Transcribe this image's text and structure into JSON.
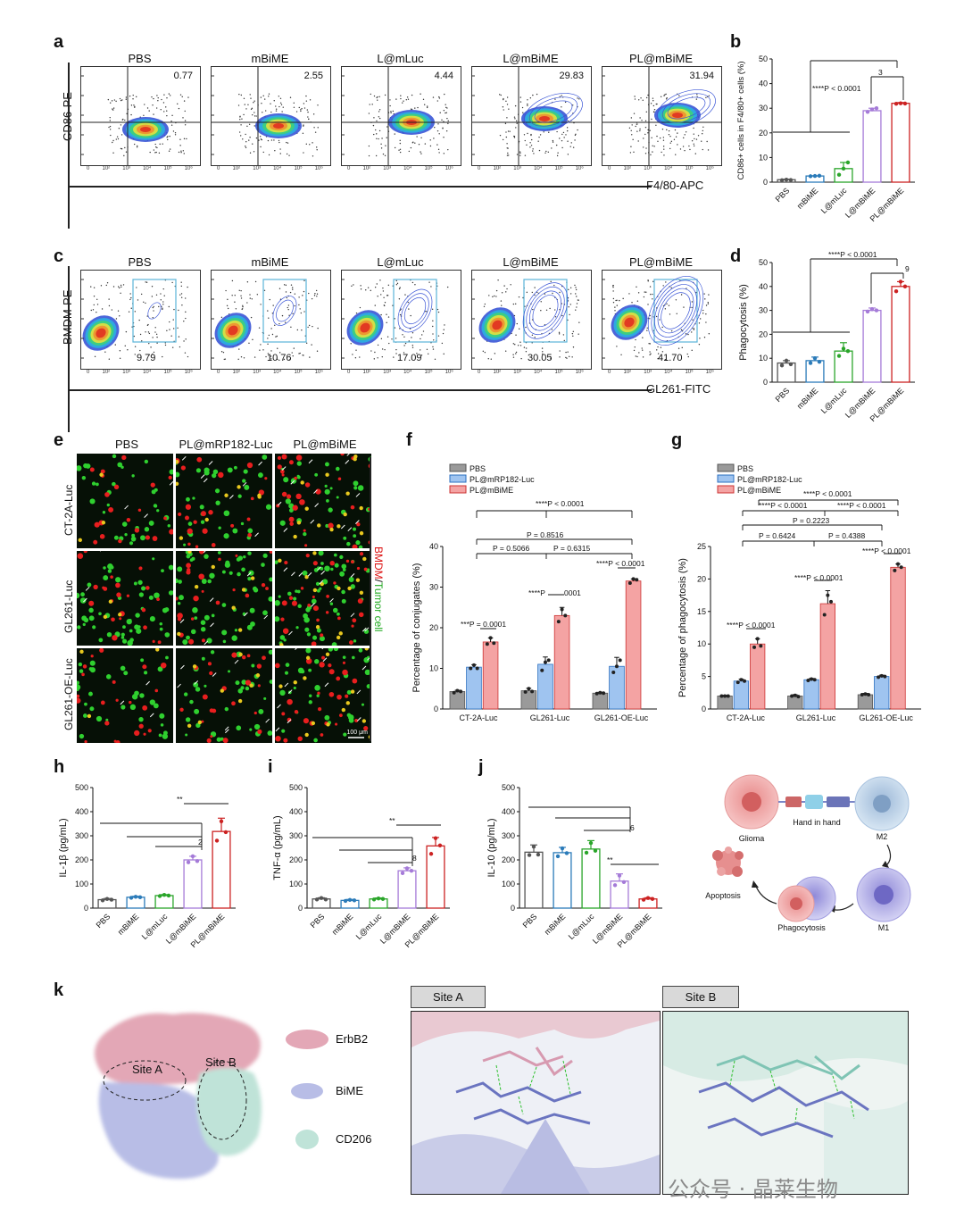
{
  "panels": {
    "a": {
      "letter": "a",
      "ylabel": "CD86-PE",
      "xlabel": "F4/80-APC",
      "plots": [
        {
          "title": "PBS",
          "value": "0.77"
        },
        {
          "title": "mBiME",
          "value": "2.55"
        },
        {
          "title": "L@mLuc",
          "value": "4.44"
        },
        {
          "title": "L@mBiME",
          "value": "29.83"
        },
        {
          "title": "PL@mBiME",
          "value": "31.94"
        }
      ]
    },
    "c": {
      "letter": "c",
      "ylabel": "BMDM-PE",
      "xlabel": "GL261-FITC",
      "plots": [
        {
          "title": "PBS",
          "value": "9.79"
        },
        {
          "title": "mBiME",
          "value": "10.76"
        },
        {
          "title": "L@mLuc",
          "value": "17.09"
        },
        {
          "title": "L@mBiME",
          "value": "30.05"
        },
        {
          "title": "PL@mBiME",
          "value": "41.70"
        }
      ]
    },
    "e": {
      "letter": "e",
      "columns": [
        "PBS",
        "PL@mRP182-Luc",
        "PL@mBiME"
      ],
      "rows": [
        "CT-2A-Luc",
        "GL261-Luc",
        "GL261-OE-Luc"
      ],
      "side_label_bmdm": "BMDM",
      "side_label_sep": "/",
      "side_label_tumor": "Tumor cell",
      "scale": "100 μm"
    },
    "h_label": "h",
    "i_label": "i",
    "j_label": "j",
    "k": {
      "letter": "k",
      "site_a": "Site A",
      "site_b": "Site B",
      "legend": [
        "ErbB2",
        "BiME",
        "CD206"
      ],
      "schematic": {
        "glioma": "Glioma",
        "hand": "Hand in hand",
        "m2": "M2",
        "m1": "M1",
        "apoptosis": "Apoptosis",
        "phagocytosis": "Phagocytosis"
      }
    }
  },
  "watermark": "公众号 · 晶莱生物",
  "colors": {
    "PBS": "#555555",
    "mBiME": "#2b7bb9",
    "L@mLuc": "#2aa52a",
    "L@mBiME": "#a57bd8",
    "PL@mBiME": "#cc2222",
    "gray_fill": "#9a9a9a",
    "blue_fill": "#9fc4f0",
    "red_fill": "#f4a3a3"
  },
  "chart_data": [
    {
      "id": "b",
      "type": "bar",
      "categories": [
        "PBS",
        "mBiME",
        "L@mLuc",
        "L@mBiME",
        "PL@mBiME"
      ],
      "values": [
        1,
        2.5,
        5.5,
        29,
        32
      ],
      "points": [
        [
          0.8,
          1,
          0.9
        ],
        [
          2.4,
          2.5,
          2.6
        ],
        [
          3,
          5.5,
          8
        ],
        [
          28.5,
          29.5,
          30
        ],
        [
          31.8,
          32,
          31.9
        ]
      ],
      "errors": [
        0.2,
        0.1,
        2.5,
        1,
        0.3
      ],
      "ylabel": "CD86+ cells in F4/80+ cells (%)",
      "ylim": [
        0,
        50
      ],
      "yticks": [
        0,
        10,
        20,
        30,
        40,
        50
      ],
      "annotations": [
        "****P < 0.0001",
        "3"
      ]
    },
    {
      "id": "d",
      "type": "bar",
      "categories": [
        "PBS",
        "mBiME",
        "L@mLuc",
        "L@mBiME",
        "PL@mBiME"
      ],
      "values": [
        8,
        9,
        13,
        30,
        40
      ],
      "points": [
        [
          7,
          9,
          7.5
        ],
        [
          8,
          10,
          8.5
        ],
        [
          11,
          14,
          13
        ],
        [
          29.5,
          30.5,
          30
        ],
        [
          38,
          42,
          40
        ]
      ],
      "errors": [
        1,
        1.5,
        3.5,
        1,
        2
      ],
      "ylabel": "Phagocytosis (%)",
      "ylim": [
        0,
        50
      ],
      "yticks": [
        0,
        10,
        20,
        30,
        40,
        50
      ],
      "annotations": [
        "****P < 0.0001",
        "9"
      ]
    },
    {
      "id": "f",
      "type": "bar",
      "categories": [
        "CT-2A-Luc",
        "GL261-Luc",
        "GL261-OE-Luc"
      ],
      "series": [
        {
          "name": "PBS",
          "values": [
            4.3,
            4.5,
            3.9
          ],
          "points": [
            [
              4,
              4.5,
              4.3
            ],
            [
              4.2,
              5,
              4.3
            ],
            [
              3.8,
              4,
              3.9
            ]
          ],
          "errors": [
            0.3,
            0.6,
            0.2
          ]
        },
        {
          "name": "PL@mRP182-Luc",
          "values": [
            10.3,
            11,
            10.5
          ],
          "points": [
            [
              10,
              10.8,
              10
            ],
            [
              9.5,
              11.5,
              12
            ],
            [
              9,
              10.5,
              12
            ]
          ],
          "errors": [
            0.6,
            1.8,
            2.2
          ]
        },
        {
          "name": "PL@mBiME",
          "values": [
            16.5,
            23,
            31.5
          ],
          "points": [
            [
              16,
              17.5,
              16.2
            ],
            [
              21.5,
              24.5,
              23
            ],
            [
              31,
              32,
              31.8
            ]
          ],
          "errors": [
            1,
            2,
            0.5
          ]
        }
      ],
      "ylabel": "Percentage of conjugates (%)",
      "ylim": [
        0,
        40
      ],
      "yticks": [
        0,
        10,
        20,
        30,
        40
      ],
      "annotations": [
        "****P < 0.0001",
        "P = 0.8516",
        "P = 0.5066",
        "P = 0.6315",
        "***P = 0.0001",
        "****P",
        "0001",
        "****P < 0.0001"
      ]
    },
    {
      "id": "g",
      "type": "bar",
      "categories": [
        "CT-2A-Luc",
        "GL261-Luc",
        "GL261-OE-Luc"
      ],
      "series": [
        {
          "name": "PBS",
          "values": [
            2,
            2,
            2.2
          ],
          "points": [
            [
              2,
              2,
              2
            ],
            [
              2,
              2.1,
              1.9
            ],
            [
              2.2,
              2.3,
              2.2
            ]
          ],
          "errors": [
            0.1,
            0.2,
            0.2
          ]
        },
        {
          "name": "PL@mRP182-Luc",
          "values": [
            4.3,
            4.5,
            5
          ],
          "points": [
            [
              4.1,
              4.5,
              4.3
            ],
            [
              4.4,
              4.6,
              4.5
            ],
            [
              4.9,
              5.1,
              5
            ]
          ],
          "errors": [
            0.3,
            0.2,
            0.2
          ]
        },
        {
          "name": "PL@mBiME",
          "values": [
            10,
            16.2,
            21.8
          ],
          "points": [
            [
              9.5,
              10.8,
              9.7
            ],
            [
              14.5,
              17.5,
              16.5
            ],
            [
              21.3,
              22.3,
              21.8
            ]
          ],
          "errors": [
            0.8,
            2,
            0.5
          ]
        }
      ],
      "ylabel": "Percentage of phagocytosis (%)",
      "ylim": [
        0,
        25
      ],
      "yticks": [
        0,
        5,
        10,
        15,
        20,
        25
      ],
      "annotations": [
        "****P < 0.0001",
        "****P < 0.0001",
        "****P < 0.0001",
        "P = 0.2223",
        "P = 0.6424",
        "P = 0.4388",
        "****P < 0.0001",
        "****P < 0.0001",
        "****P < 0.0001"
      ]
    },
    {
      "id": "h",
      "type": "bar",
      "categories": [
        "PBS",
        "mBiME",
        "L@mLuc",
        "L@mBiME",
        "PL@mBiME"
      ],
      "values": [
        35,
        45,
        52,
        200,
        318
      ],
      "points": [
        [
          32,
          38,
          35
        ],
        [
          43,
          47,
          45
        ],
        [
          50,
          55,
          52
        ],
        [
          190,
          215,
          195
        ],
        [
          280,
          360,
          315
        ]
      ],
      "errors": [
        5,
        4,
        4,
        15,
        55
      ],
      "ylabel": "IL-1β (pg/mL)",
      "ylim": [
        0,
        500
      ],
      "yticks": [
        0,
        100,
        200,
        300,
        400,
        500
      ],
      "annotations": [
        "**",
        "2"
      ]
    },
    {
      "id": "i",
      "type": "bar",
      "categories": [
        "PBS",
        "mBiME",
        "L@mLuc",
        "L@mBiME",
        "PL@mBiME"
      ],
      "values": [
        38,
        32,
        38,
        155,
        258
      ],
      "points": [
        [
          36,
          42,
          36
        ],
        [
          30,
          34,
          32
        ],
        [
          36,
          40,
          38
        ],
        [
          145,
          165,
          155
        ],
        [
          225,
          290,
          260
        ]
      ],
      "errors": [
        5,
        4,
        4,
        12,
        35
      ],
      "ylabel": "TNF-α (pg/mL)",
      "ylim": [
        0,
        500
      ],
      "yticks": [
        0,
        100,
        200,
        300,
        400,
        500
      ],
      "annotations": [
        "**",
        "8"
      ]
    },
    {
      "id": "j",
      "type": "bar",
      "categories": [
        "PBS",
        "mBiME",
        "L@mLuc",
        "L@mBiME",
        "PL@mBiME"
      ],
      "values": [
        232,
        230,
        245,
        112,
        38
      ],
      "points": [
        [
          220,
          255,
          222
        ],
        [
          215,
          248,
          228
        ],
        [
          230,
          270,
          238
        ],
        [
          95,
          135,
          108
        ],
        [
          35,
          42,
          38
        ]
      ],
      "errors": [
        30,
        22,
        35,
        30,
        5
      ],
      "ylabel": "IL-10 (pg/mL)",
      "ylim": [
        0,
        500
      ],
      "yticks": [
        0,
        100,
        200,
        300,
        400,
        500
      ],
      "annotations": [
        "6",
        "**"
      ]
    }
  ]
}
